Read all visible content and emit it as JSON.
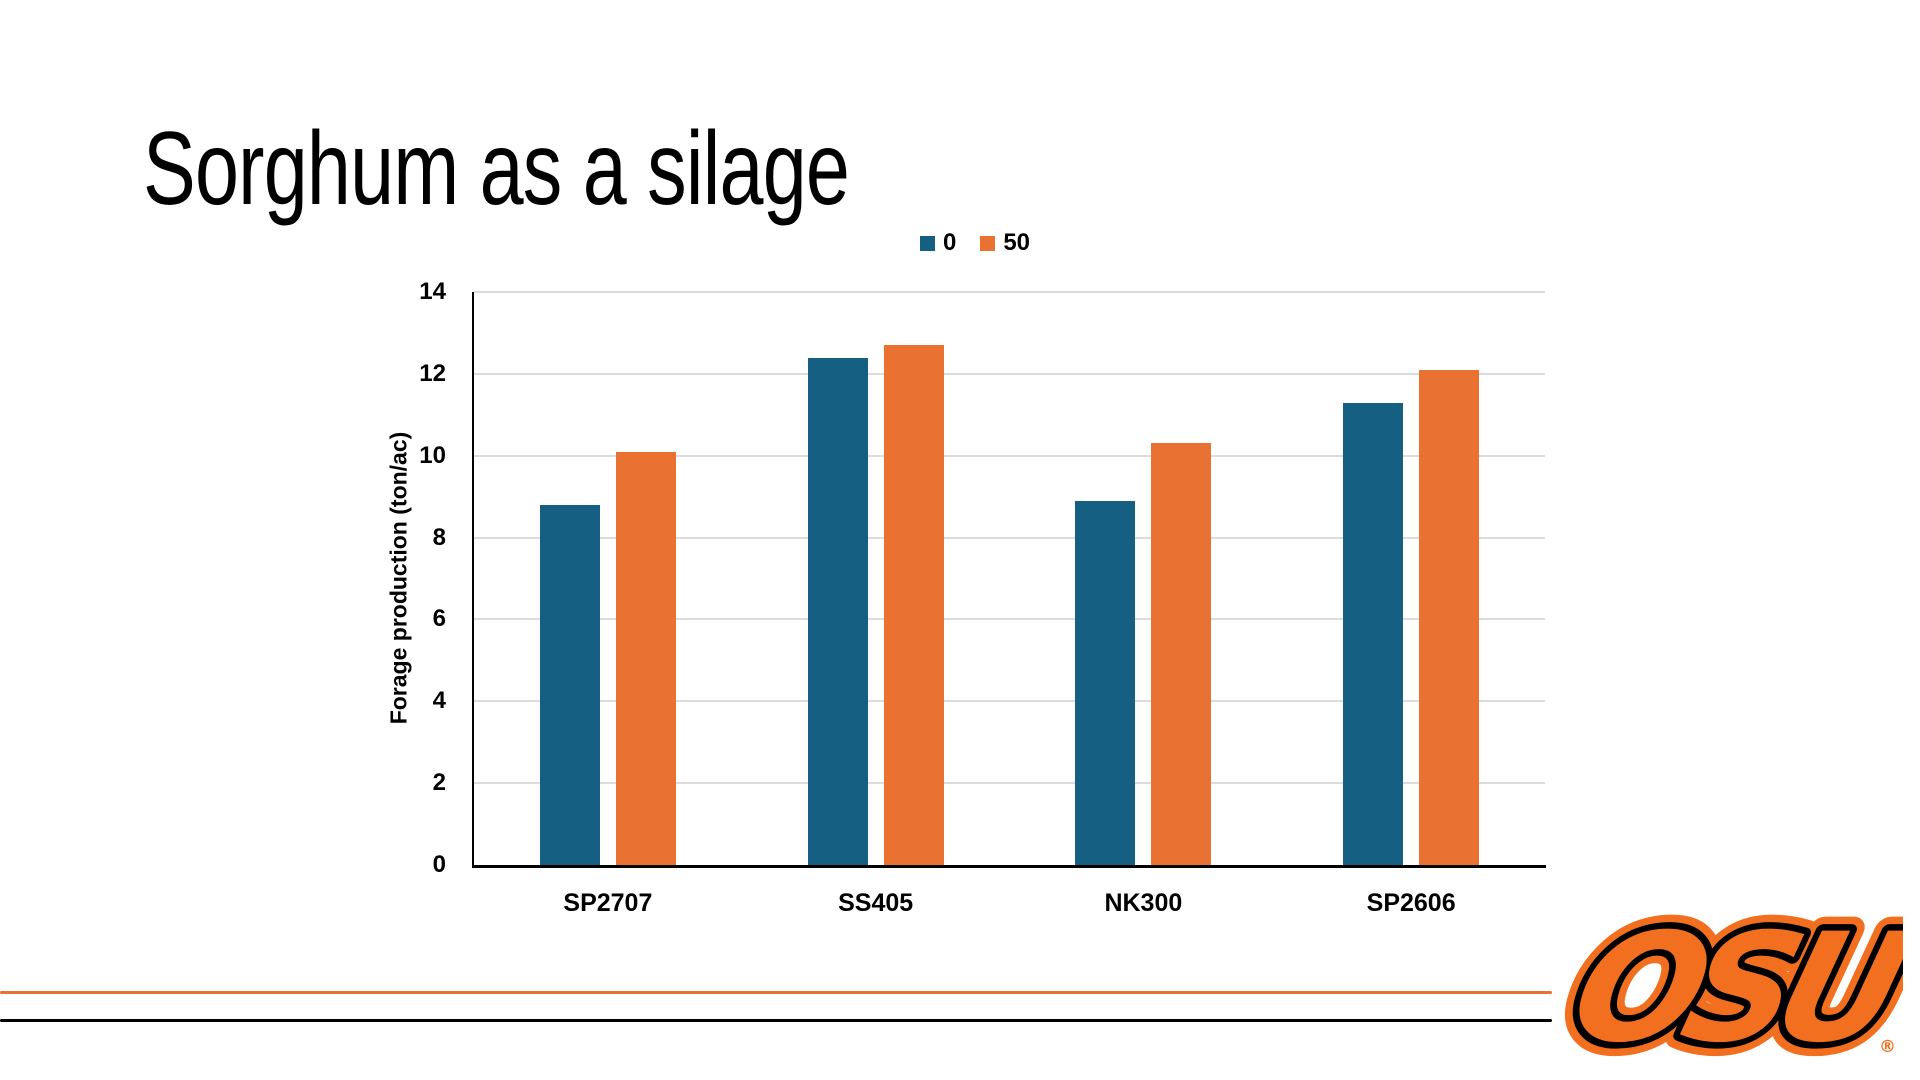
{
  "slide": {
    "title": "Sorghum as a silage"
  },
  "chart_data": {
    "type": "bar",
    "categories": [
      "SP2707",
      "SS405",
      "NK300",
      "SP2606"
    ],
    "series": [
      {
        "name": "0",
        "color": "#156082",
        "values": [
          8.8,
          12.4,
          8.9,
          11.3
        ]
      },
      {
        "name": "50",
        "color": "#E97132",
        "values": [
          10.1,
          12.7,
          10.3,
          12.1
        ]
      }
    ],
    "title": "",
    "xlabel": "",
    "ylabel": "Forage production (ton/ac)",
    "ylim": [
      0,
      14
    ],
    "ytick_step": 2,
    "yticks": [
      0,
      2,
      4,
      6,
      8,
      10,
      12,
      14
    ],
    "grid": "horizontal",
    "gridline_color": "#DCDCDC",
    "axis_color": "#000000",
    "legend_position": "top-center"
  },
  "footer": {
    "accent_line_color": "#E97132",
    "base_line_color": "#000000"
  },
  "logo": {
    "text": "OSU",
    "registered": "®",
    "orange": "#F26F20",
    "black": "#000000"
  }
}
